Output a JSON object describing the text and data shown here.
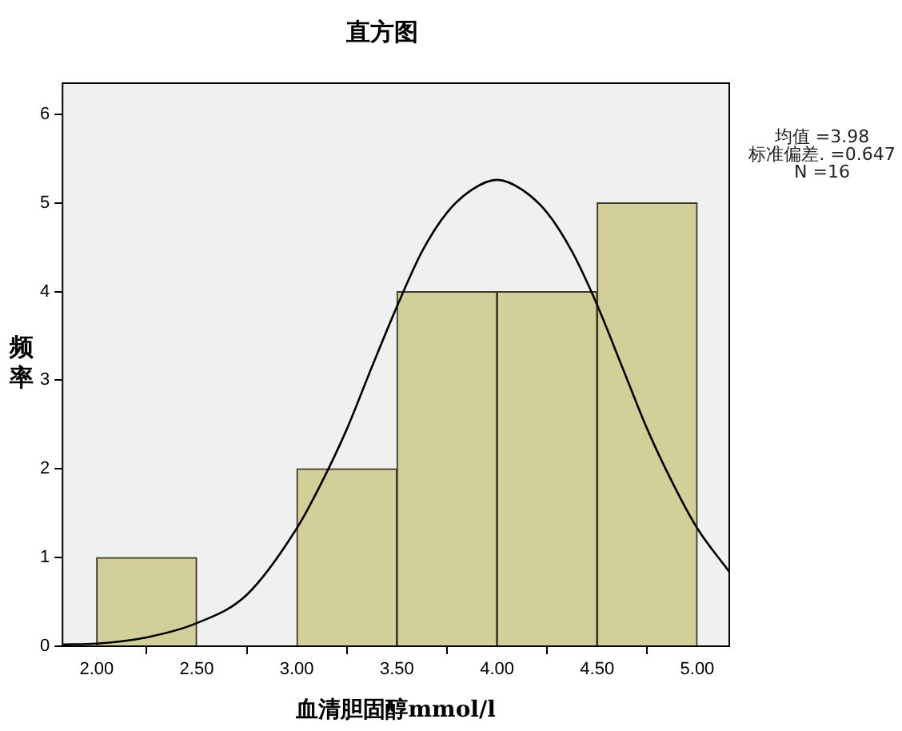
{
  "chart_data": {
    "type": "histogram",
    "title": "直方图",
    "xlabel": "血清胆固醇mmol/l",
    "ylabel": "频率",
    "bins": [
      2.0,
      2.5,
      3.0,
      3.5,
      4.0,
      4.5,
      5.0
    ],
    "series": [
      {
        "color": "#d3cf98",
        "values": [
          1,
          0,
          2,
          4,
          4,
          5
        ]
      },
      {
        "type": "line",
        "color": "#000000",
        "x": [
          1.83,
          2.0,
          2.25,
          2.5,
          2.75,
          3.0,
          3.125,
          3.25,
          3.375,
          3.5,
          3.625,
          3.75,
          3.875,
          4.0,
          4.125,
          4.25,
          4.375,
          4.5,
          4.625,
          4.75,
          4.875,
          5.0,
          5.16
        ],
        "values": [
          0.02,
          0.03,
          0.1,
          0.26,
          0.58,
          1.33,
          1.85,
          2.45,
          3.15,
          3.83,
          4.45,
          4.89,
          5.15,
          5.26,
          5.15,
          4.89,
          4.45,
          3.85,
          3.15,
          2.45,
          1.85,
          1.33,
          0.84
        ]
      }
    ],
    "xlim": [
      1.83,
      5.16
    ],
    "xticks": [
      {
        "value": 2,
        "label": "2.00"
      },
      {
        "value": 2.5,
        "label": "2.50"
      },
      {
        "value": 3,
        "label": "3.00"
      },
      {
        "value": 3.5,
        "label": "3.50"
      },
      {
        "value": 4,
        "label": "4.00"
      },
      {
        "value": 4.5,
        "label": "4.50"
      },
      {
        "value": 5,
        "label": "5.00"
      }
    ],
    "ylim": [
      0,
      6.35
    ],
    "yticks": [
      0,
      1,
      2,
      3,
      4,
      5,
      6
    ],
    "grid": false,
    "legend": false,
    "marker": "none",
    "line_style": "solid",
    "annotations": [
      "均值 =3.98",
      "标准偏差. =0.647",
      "N =16"
    ]
  }
}
